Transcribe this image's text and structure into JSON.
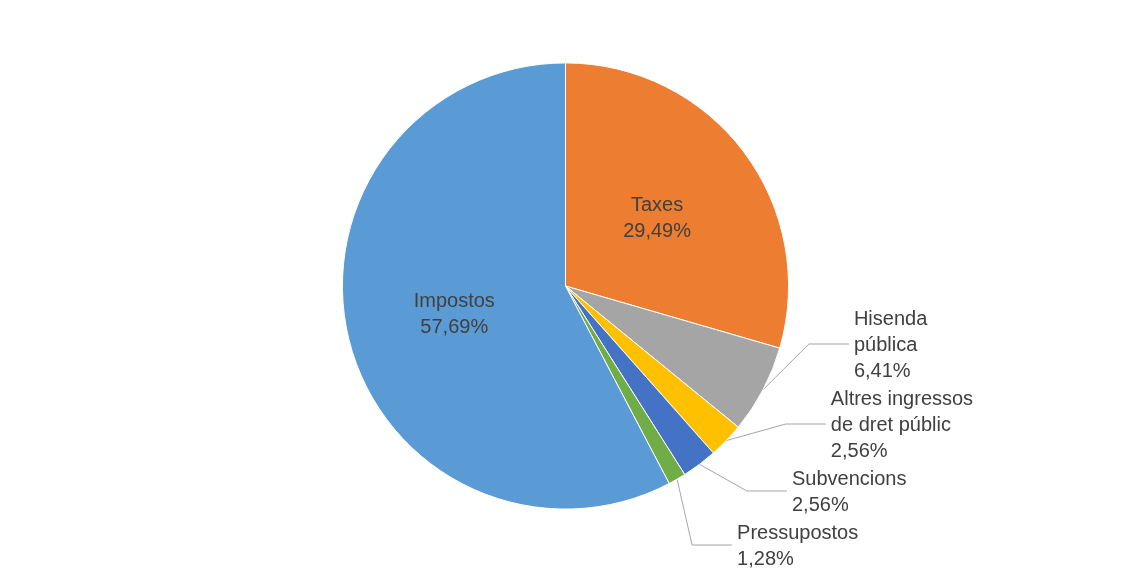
{
  "chart_data": {
    "type": "pie",
    "categories": [
      "Taxes",
      "Hisenda pública",
      "Altres ingressos de dret públic",
      "Subvencions",
      "Pressupostos",
      "Impostos"
    ],
    "values": [
      29.49,
      6.41,
      2.56,
      2.56,
      1.28,
      57.69
    ],
    "colors": [
      "#ed7d31",
      "#a5a5a5",
      "#ffc000",
      "#4472c4",
      "#70ad47",
      "#5b9bd5"
    ],
    "value_labels": [
      "29,49%",
      "6,41%",
      "2,56%",
      "2,56%",
      "1,28%",
      "57,69%"
    ],
    "legend": false
  }
}
